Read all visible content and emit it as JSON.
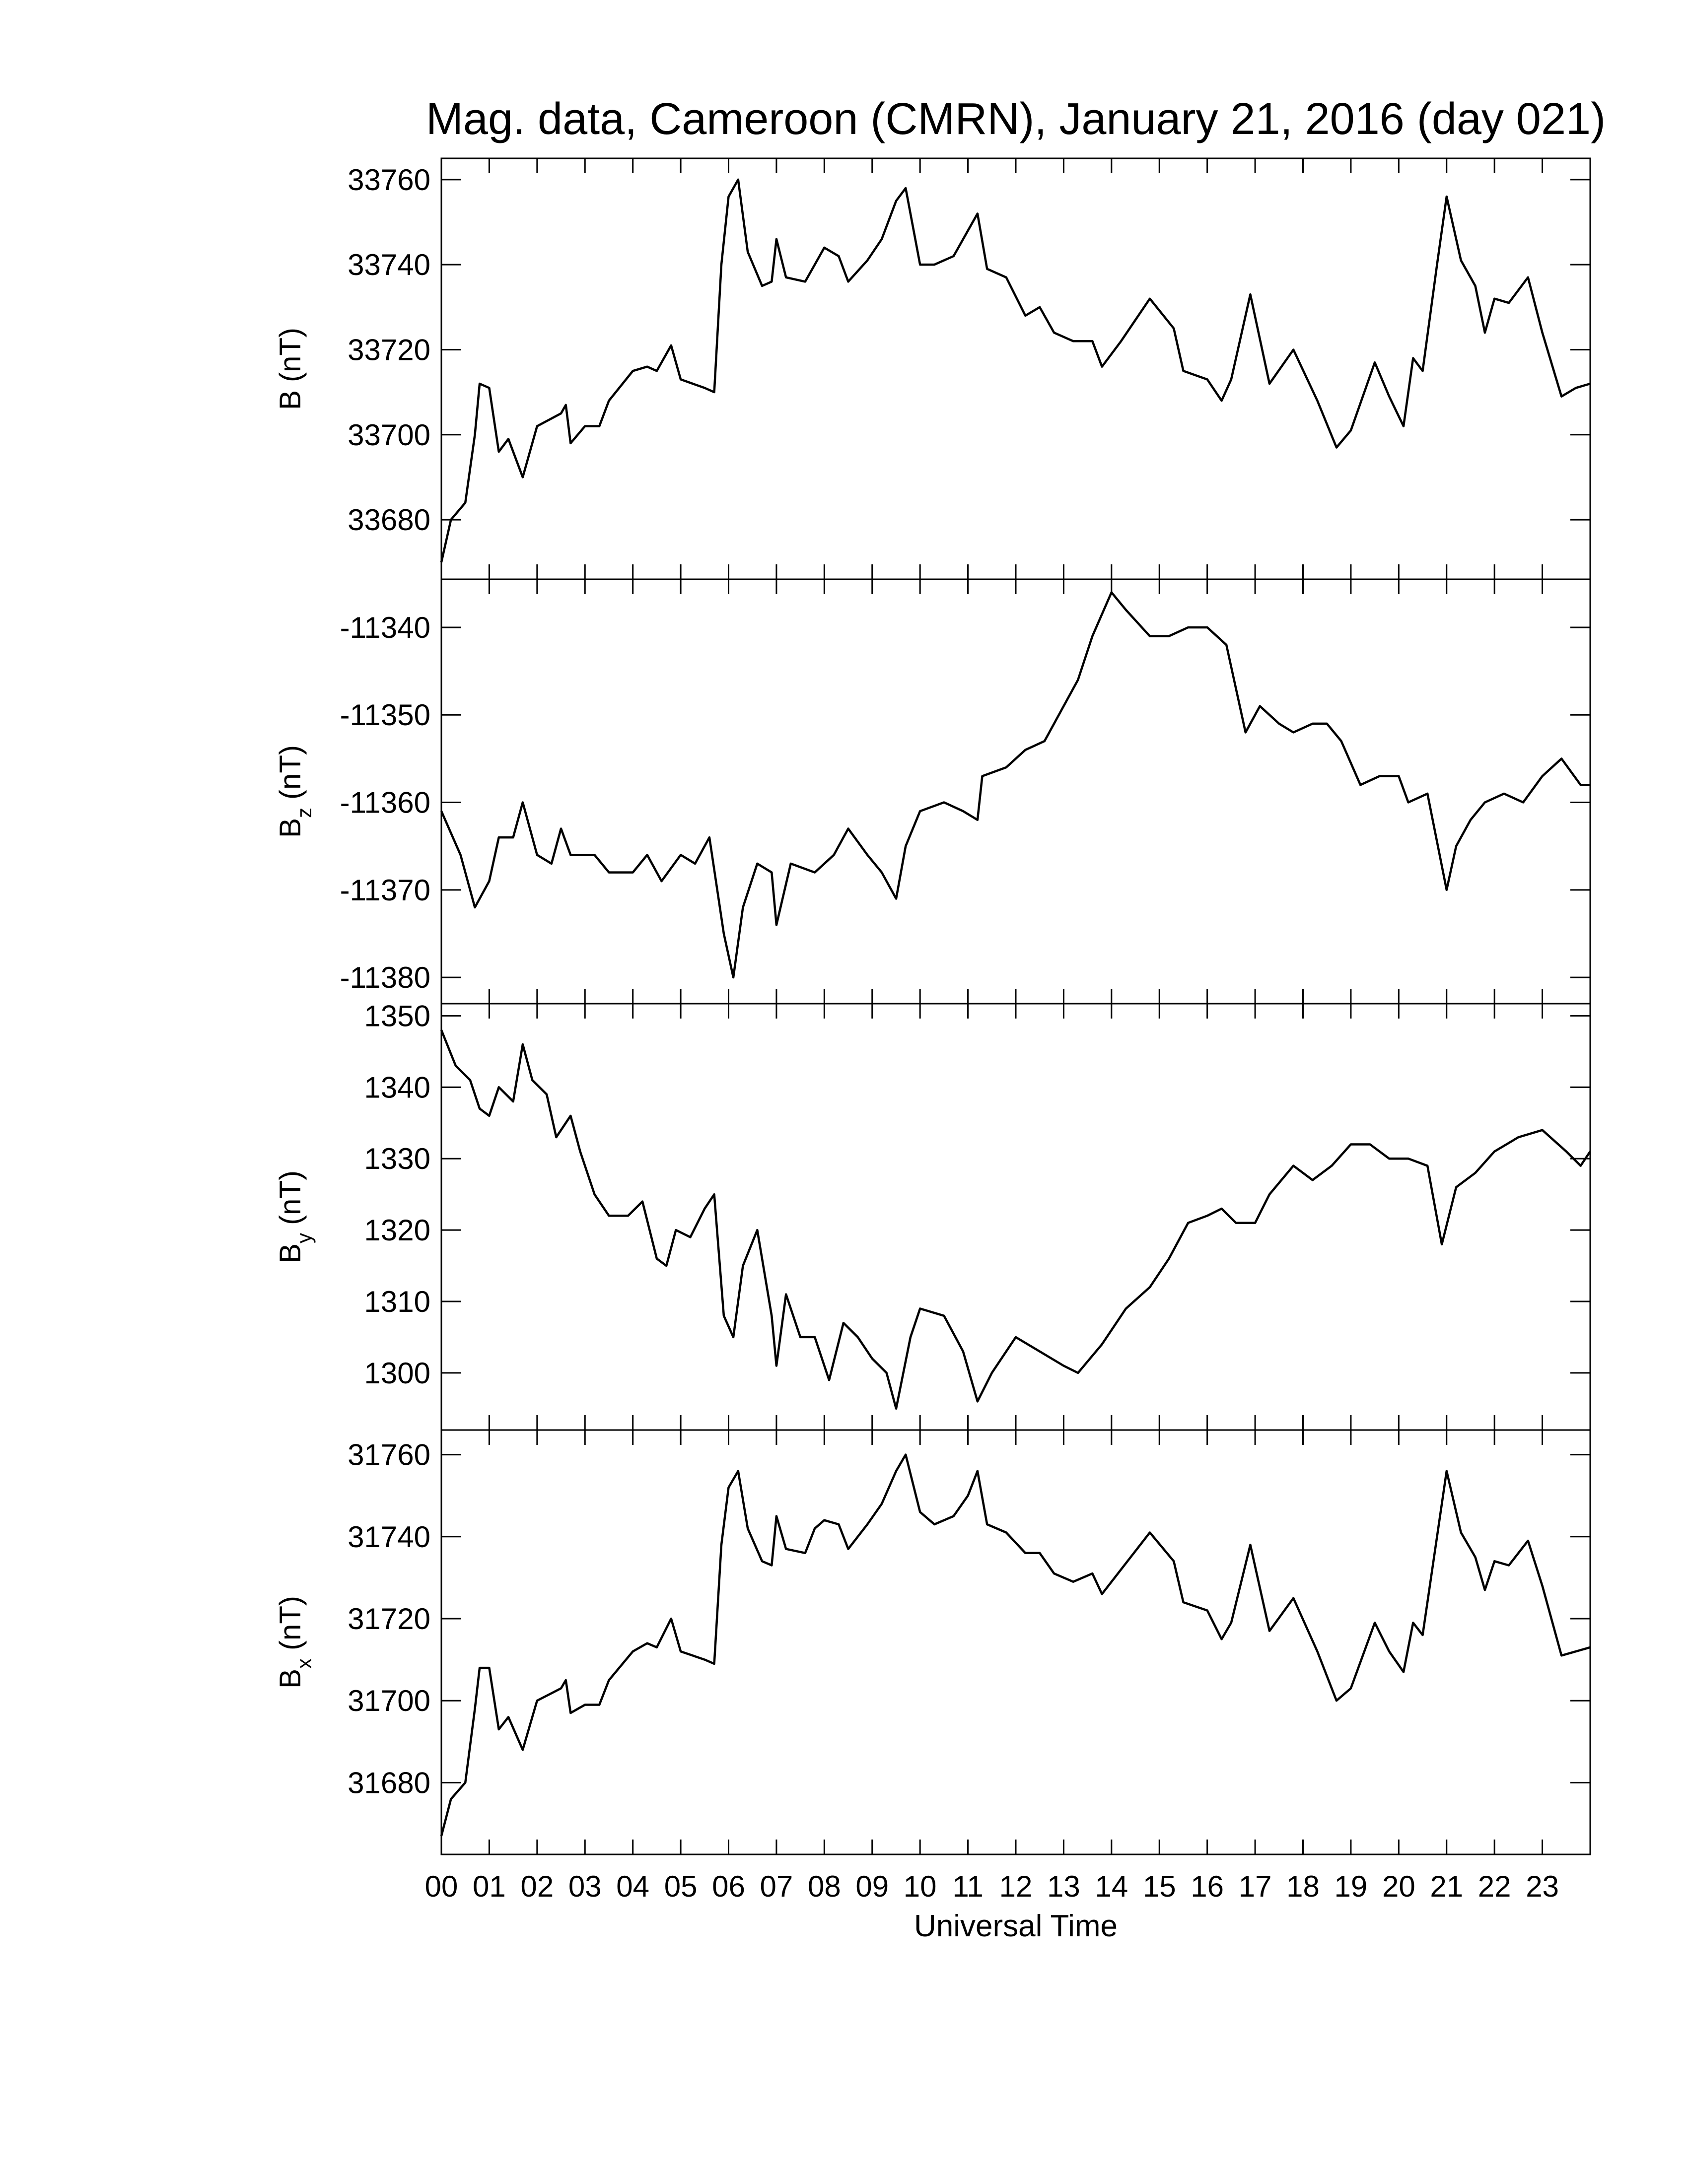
{
  "chart_data": [
    {
      "type": "line",
      "title": "Mag. data, Cameroon (CMRN), January 21, 2016 (day 021)",
      "ylabel_symbol": "B",
      "ylabel_unit": "(nT)",
      "color": "#000000",
      "ylim": [
        33666,
        33765
      ],
      "yticks": [
        33680,
        33700,
        33720,
        33740,
        33760
      ],
      "x": [
        0,
        0.2,
        0.5,
        0.7,
        0.8,
        1.0,
        1.2,
        1.4,
        1.7,
        2.0,
        2.5,
        2.6,
        2.7,
        3.0,
        3.3,
        3.5,
        4.0,
        4.3,
        4.5,
        4.8,
        5.0,
        5.5,
        5.7,
        5.85,
        6.0,
        6.2,
        6.4,
        6.7,
        6.9,
        7.0,
        7.2,
        7.6,
        7.8,
        8.0,
        8.3,
        8.5,
        8.9,
        9.2,
        9.5,
        9.7,
        10.0,
        10.3,
        10.7,
        11.0,
        11.2,
        11.4,
        11.8,
        12.2,
        12.5,
        12.8,
        13.2,
        13.6,
        13.8,
        14.2,
        14.8,
        15.3,
        15.5,
        16.0,
        16.3,
        16.5,
        16.9,
        17.3,
        17.8,
        18.3,
        18.7,
        19.0,
        19.5,
        19.8,
        20.1,
        20.3,
        20.5,
        20.8,
        21.0,
        21.3,
        21.6,
        21.8,
        22.0,
        22.3,
        22.7,
        23.0,
        23.4,
        23.7,
        24
      ],
      "values": [
        33670,
        33680,
        33684,
        33700,
        33712,
        33711,
        33696,
        33699,
        33690,
        33702,
        33705,
        33707,
        33698,
        33702,
        33702,
        33708,
        33715,
        33716,
        33715,
        33721,
        33713,
        33711,
        33710,
        33740,
        33756,
        33760,
        33743,
        33735,
        33736,
        33746,
        33737,
        33736,
        33740,
        33744,
        33742,
        33736,
        33741,
        33746,
        33755,
        33758,
        33740,
        33740,
        33742,
        33748,
        33752,
        33739,
        33737,
        33728,
        33730,
        33724,
        33722,
        33722,
        33716,
        33722,
        33732,
        33725,
        33715,
        33713,
        33708,
        33713,
        33733,
        33712,
        33720,
        33708,
        33697,
        33701,
        33717,
        33709,
        33702,
        33718,
        33715,
        33740,
        33756,
        33741,
        33735,
        33724,
        33732,
        33731,
        33737,
        33724,
        33709,
        33711,
        33712
      ]
    },
    {
      "type": "line",
      "ylabel_symbol": "B",
      "ylabel_subscript": "z",
      "ylabel_unit": "(nT)",
      "color": "#000000",
      "ylim": [
        -11383,
        -11334.5
      ],
      "yticks": [
        -11380,
        -11370,
        -11360,
        -11350,
        -11340
      ],
      "x": [
        0,
        0.4,
        0.7,
        1.0,
        1.2,
        1.5,
        1.7,
        2.0,
        2.3,
        2.5,
        2.7,
        3.2,
        3.5,
        4.0,
        4.3,
        4.6,
        5.0,
        5.3,
        5.6,
        5.9,
        6.1,
        6.3,
        6.6,
        6.9,
        7.0,
        7.3,
        7.8,
        8.2,
        8.5,
        8.9,
        9.2,
        9.5,
        9.7,
        10.0,
        10.5,
        10.9,
        11.2,
        11.3,
        11.8,
        12.2,
        12.6,
        13.0,
        13.3,
        13.6,
        14.0,
        14.3,
        14.8,
        15.2,
        15.6,
        16.0,
        16.4,
        16.8,
        17.1,
        17.5,
        17.8,
        18.2,
        18.5,
        18.8,
        19.2,
        19.6,
        20.0,
        20.2,
        20.6,
        21.0,
        21.2,
        21.5,
        21.8,
        22.2,
        22.6,
        23.0,
        23.4,
        23.8,
        24
      ],
      "values": [
        -11361,
        -11366,
        -11372,
        -11369,
        -11364,
        -11364,
        -11360,
        -11366,
        -11367,
        -11363,
        -11366,
        -11366,
        -11368,
        -11368,
        -11366,
        -11369,
        -11366,
        -11367,
        -11364,
        -11375,
        -11380,
        -11372,
        -11367,
        -11368,
        -11374,
        -11367,
        -11368,
        -11366,
        -11363,
        -11366,
        -11368,
        -11371,
        -11365,
        -11361,
        -11360,
        -11361,
        -11362,
        -11357,
        -11356,
        -11354,
        -11353,
        -11349,
        -11346,
        -11341,
        -11336,
        -11338,
        -11341,
        -11341,
        -11340,
        -11340,
        -11342,
        -11352,
        -11349,
        -11351,
        -11352,
        -11351,
        -11351,
        -11353,
        -11358,
        -11357,
        -11357,
        -11360,
        -11359,
        -11370,
        -11365,
        -11362,
        -11360,
        -11359,
        -11360,
        -11357,
        -11355,
        -11358,
        -11358
      ]
    },
    {
      "type": "line",
      "ylabel_symbol": "B",
      "ylabel_subscript": "y",
      "ylabel_unit": "(nT)",
      "color": "#000000",
      "ylim": [
        1292,
        1351.7
      ],
      "yticks": [
        1300,
        1310,
        1320,
        1330,
        1340,
        1350
      ],
      "x": [
        0,
        0.3,
        0.6,
        0.8,
        1.0,
        1.2,
        1.5,
        1.7,
        1.9,
        2.2,
        2.4,
        2.7,
        2.9,
        3.2,
        3.5,
        3.9,
        4.2,
        4.5,
        4.7,
        4.9,
        5.2,
        5.5,
        5.7,
        5.9,
        6.1,
        6.3,
        6.6,
        6.9,
        7.0,
        7.2,
        7.5,
        7.8,
        8.1,
        8.4,
        8.7,
        9.0,
        9.3,
        9.5,
        9.8,
        10.0,
        10.5,
        10.9,
        11.2,
        11.5,
        12.0,
        12.5,
        13.0,
        13.3,
        13.8,
        14.3,
        14.8,
        15.2,
        15.6,
        16.0,
        16.3,
        16.6,
        17.0,
        17.3,
        17.8,
        18.2,
        18.6,
        19.0,
        19.4,
        19.8,
        20.2,
        20.6,
        20.9,
        21.2,
        21.6,
        22.0,
        22.5,
        23.0,
        23.5,
        23.8,
        24
      ],
      "values": [
        1348,
        1343,
        1341,
        1337,
        1336,
        1340,
        1338,
        1346,
        1341,
        1339,
        1333,
        1336,
        1331,
        1325,
        1322,
        1322,
        1324,
        1316,
        1315,
        1320,
        1319,
        1323,
        1325,
        1308,
        1305,
        1315,
        1320,
        1308,
        1301,
        1311,
        1305,
        1305,
        1299,
        1307,
        1305,
        1302,
        1300,
        1295,
        1305,
        1309,
        1308,
        1303,
        1296,
        1300,
        1305,
        1303,
        1301,
        1300,
        1304,
        1309,
        1312,
        1316,
        1321,
        1322,
        1323,
        1321,
        1321,
        1325,
        1329,
        1327,
        1329,
        1332,
        1332,
        1330,
        1330,
        1329,
        1318,
        1326,
        1328,
        1331,
        1333,
        1334,
        1331,
        1329,
        1331
      ]
    },
    {
      "type": "line",
      "ylabel_symbol": "B",
      "ylabel_subscript": "x",
      "ylabel_unit": "(nT)",
      "color": "#000000",
      "xlabel": "Universal Time",
      "ylim": [
        31662.5,
        31766
      ],
      "yticks": [
        31680,
        31700,
        31720,
        31740,
        31760
      ],
      "xlim": [
        0,
        24
      ],
      "xticks": [
        {
          "value": 0,
          "label": "00"
        },
        {
          "value": 1,
          "label": "01"
        },
        {
          "value": 2,
          "label": "02"
        },
        {
          "value": 3,
          "label": "03"
        },
        {
          "value": 4,
          "label": "04"
        },
        {
          "value": 5,
          "label": "05"
        },
        {
          "value": 6,
          "label": "06"
        },
        {
          "value": 7,
          "label": "07"
        },
        {
          "value": 8,
          "label": "08"
        },
        {
          "value": 9,
          "label": "09"
        },
        10,
        11,
        12,
        13,
        14,
        15,
        16,
        17,
        18,
        19,
        20,
        21,
        22,
        23
      ],
      "x": [
        0,
        0.2,
        0.5,
        0.7,
        0.8,
        1.0,
        1.2,
        1.4,
        1.7,
        2.0,
        2.5,
        2.6,
        2.7,
        3.0,
        3.3,
        3.5,
        4.0,
        4.3,
        4.5,
        4.8,
        5.0,
        5.5,
        5.7,
        5.85,
        6.0,
        6.2,
        6.4,
        6.7,
        6.9,
        7.0,
        7.2,
        7.6,
        7.8,
        8.0,
        8.3,
        8.5,
        8.9,
        9.2,
        9.5,
        9.7,
        10.0,
        10.3,
        10.7,
        11.0,
        11.2,
        11.4,
        11.8,
        12.2,
        12.5,
        12.8,
        13.2,
        13.6,
        13.8,
        14.2,
        14.8,
        15.3,
        15.5,
        16.0,
        16.3,
        16.5,
        16.9,
        17.3,
        17.8,
        18.3,
        18.7,
        19.0,
        19.5,
        19.8,
        20.1,
        20.3,
        20.5,
        20.8,
        21.0,
        21.3,
        21.6,
        21.8,
        22.0,
        22.3,
        22.7,
        23.0,
        23.4,
        23.7,
        24
      ],
      "values": [
        31667,
        31676,
        31680,
        31698,
        31708,
        31708,
        31693,
        31696,
        31688,
        31700,
        31703,
        31705,
        31697,
        31699,
        31699,
        31705,
        31712,
        31714,
        31713,
        31720,
        31712,
        31710,
        31709,
        31738,
        31752,
        31756,
        31742,
        31734,
        31733,
        31745,
        31737,
        31736,
        31742,
        31744,
        31743,
        31737,
        31743,
        31748,
        31756,
        31760,
        31746,
        31743,
        31745,
        31750,
        31756,
        31743,
        31741,
        31736,
        31736,
        31731,
        31729,
        31731,
        31726,
        31732,
        31741,
        31734,
        31724,
        31722,
        31715,
        31719,
        31738,
        31717,
        31725,
        31712,
        31700,
        31703,
        31719,
        31712,
        31707,
        31719,
        31716,
        31740,
        31756,
        31741,
        31735,
        31727,
        31734,
        31733,
        31739,
        31728,
        31711,
        31712,
        31713
      ]
    }
  ]
}
